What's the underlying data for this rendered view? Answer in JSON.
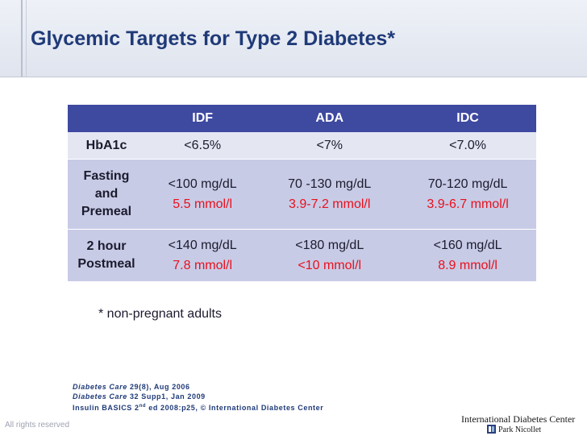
{
  "title": "Glycemic Targets for Type 2 Diabetes*",
  "table": {
    "columns": [
      "IDF",
      "ADA",
      "IDC"
    ],
    "rows": [
      {
        "label": [
          "HbA1c"
        ],
        "cells": [
          [
            "<6.5%"
          ],
          [
            "<7%"
          ],
          [
            "<7.0%"
          ]
        ]
      },
      {
        "label": [
          "Fasting",
          "and",
          "Premeal"
        ],
        "cells": [
          [
            "<100 mg/dL",
            "5.5 mmol/l"
          ],
          [
            "70 -130 mg/dL",
            "3.9-7.2 mmol/l"
          ],
          [
            "70-120 mg/dL",
            "3.9-6.7 mmol/l"
          ]
        ]
      },
      {
        "label": [
          "2 hour",
          "Postmeal"
        ],
        "cells": [
          [
            "<140 mg/dL",
            "7.8 mmol/l"
          ],
          [
            "<180  mg/dL",
            "<10 mmol/l"
          ],
          [
            "<160 mg/dL",
            "8.9 mmol/l"
          ]
        ]
      }
    ]
  },
  "footnote": "* non-pregnant adults",
  "references": {
    "line1_journal": "Diabetes Care",
    "line1_rest": " 29(8), Aug 2006",
    "line2_journal": "Diabetes Care",
    "line2_rest": " 32 Supp1,  Jan 2009",
    "line3_a": "Insulin BASICS 2",
    "line3_sup": "nd",
    "line3_b": " ed 2008:p25,  ",
    "line3_symbol": "©",
    "line3_c": " International Diabetes Center"
  },
  "rights": "All rights reserved",
  "logo": {
    "name": "International Diabetes Center",
    "sub": "Park Nicollet"
  },
  "colors": {
    "title": "#1f3a78",
    "header_bg": "#3e49a0",
    "row_light": "#e4e6f2",
    "row_dark": "#c8cbe6",
    "mmol_red": "#e8101d"
  }
}
